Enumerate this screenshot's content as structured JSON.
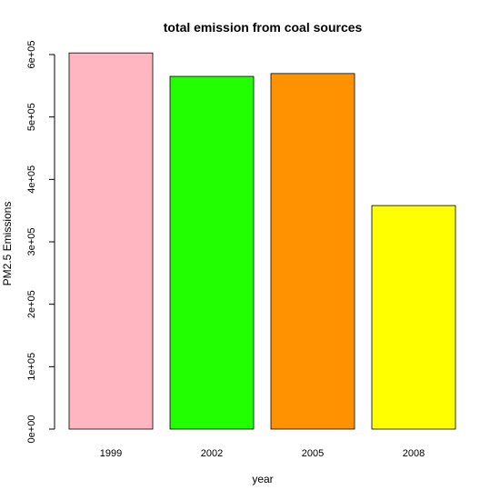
{
  "chart_data": {
    "type": "bar",
    "title": "total emission from coal sources",
    "xlabel": "year",
    "ylabel": "PM2.5 Emissions",
    "categories": [
      "1999",
      "2002",
      "2005",
      "2008"
    ],
    "values": [
      602600,
      565000,
      569600,
      358100
    ],
    "colors": [
      "#FFB6C1",
      "#22FF00",
      "#FF9200",
      "#FFFF00"
    ],
    "ylim": [
      0,
      600000
    ],
    "yticks": [
      0,
      100000,
      200000,
      300000,
      400000,
      500000,
      600000
    ],
    "ytick_labels": [
      "0e+00",
      "1e+05",
      "2e+05",
      "3e+05",
      "4e+05",
      "5e+05",
      "6e+05"
    ],
    "grid": false,
    "legend": "none"
  }
}
